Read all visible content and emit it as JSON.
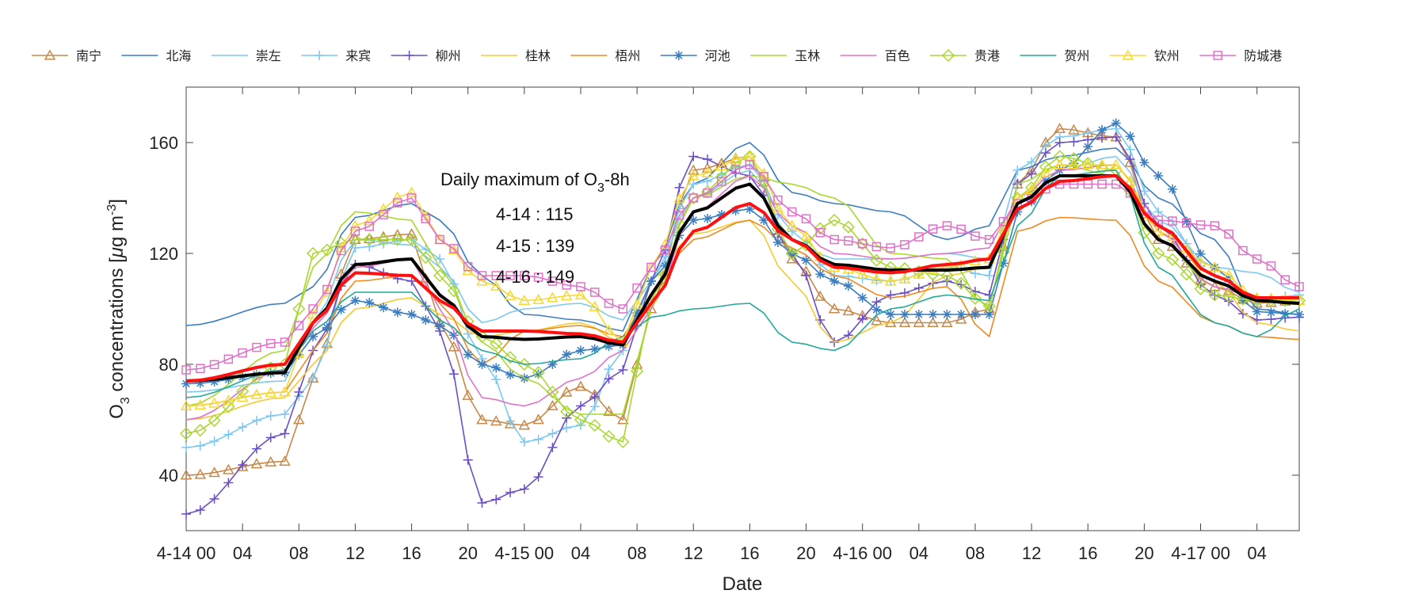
{
  "chart_data": {
    "type": "line",
    "title": "",
    "xlabel": "Date",
    "ylabel": {
      "pre": "O",
      "sub": "3",
      "mid": " concentrations [",
      "mu": "μ",
      "unit": "g m",
      "sup": "-3",
      "post": "]"
    },
    "ylim": [
      20,
      180
    ],
    "xlim": [
      0,
      79
    ],
    "yticks": [
      40,
      80,
      120,
      160
    ],
    "xticks": [
      {
        "x": 0,
        "label": "4-14 00"
      },
      {
        "x": 4,
        "label": "04"
      },
      {
        "x": 8,
        "label": "08"
      },
      {
        "x": 12,
        "label": "12"
      },
      {
        "x": 16,
        "label": "16"
      },
      {
        "x": 20,
        "label": "20"
      },
      {
        "x": 24,
        "label": "4-15 00"
      },
      {
        "x": 28,
        "label": "04"
      },
      {
        "x": 32,
        "label": "08"
      },
      {
        "x": 36,
        "label": "12"
      },
      {
        "x": 40,
        "label": "16"
      },
      {
        "x": 44,
        "label": "20"
      },
      {
        "x": 48,
        "label": "4-16 00"
      },
      {
        "x": 52,
        "label": "04"
      },
      {
        "x": 56,
        "label": "08"
      },
      {
        "x": 60,
        "label": "12"
      },
      {
        "x": 64,
        "label": "16"
      },
      {
        "x": 68,
        "label": "20"
      },
      {
        "x": 72,
        "label": "4-17 00"
      },
      {
        "x": 76,
        "label": "04"
      }
    ],
    "annotation": {
      "title_pre": "Daily maximum of O",
      "title_sub": "3",
      "title_post": "-8h",
      "lines": [
        "4-14 : 115",
        "4-15 : 139",
        "4-16 : 149"
      ]
    },
    "anchor_hours": [
      0,
      7,
      9,
      12,
      16,
      18,
      21,
      24,
      28,
      31,
      33,
      36,
      40,
      43,
      46,
      50,
      54,
      57,
      59,
      62,
      66,
      69,
      73,
      76,
      79
    ],
    "series": [
      {
        "name": "南宁",
        "color": "#c8884a",
        "marker": "triangle",
        "values": [
          40,
          45,
          75,
          125,
          127,
          95,
          60,
          58,
          72,
          60,
          100,
          150,
          155,
          118,
          100,
          95,
          95,
          100,
          145,
          165,
          162,
          125,
          108,
          102,
          103
        ]
      },
      {
        "name": "北海",
        "color": "#3a7dc0",
        "marker": "none",
        "values": [
          94,
          102,
          108,
          133,
          138,
          132,
          112,
          98,
          96,
          92,
          115,
          145,
          160,
          142,
          138,
          135,
          125,
          130,
          150,
          155,
          158,
          140,
          125,
          100,
          98
        ]
      },
      {
        "name": "崇左",
        "color": "#7cc8f0",
        "marker": "none",
        "values": [
          70,
          74,
          95,
          125,
          123,
          115,
          95,
          100,
          102,
          96,
          110,
          140,
          150,
          125,
          118,
          118,
          120,
          118,
          140,
          150,
          155,
          132,
          115,
          113,
          106
        ]
      },
      {
        "name": "来宾",
        "color": "#7cc8f0",
        "marker": "plus",
        "values": [
          50,
          62,
          75,
          122,
          125,
          118,
          82,
          52,
          58,
          85,
          110,
          145,
          152,
          128,
          112,
          110,
          115,
          112,
          150,
          162,
          165,
          135,
          112,
          103,
          105
        ]
      },
      {
        "name": "柳州",
        "color": "#6a4fc8",
        "marker": "plus",
        "values": [
          26,
          55,
          85,
          116,
          110,
          92,
          30,
          35,
          65,
          78,
          110,
          155,
          148,
          120,
          88,
          105,
          110,
          105,
          145,
          160,
          162,
          130,
          105,
          96,
          97
        ]
      },
      {
        "name": "桂林",
        "color": "#f8c830",
        "marker": "none",
        "values": [
          60,
          68,
          80,
          100,
          104,
          98,
          90,
          92,
          95,
          88,
          110,
          127,
          132,
          110,
          88,
          95,
          112,
          115,
          140,
          150,
          152,
          130,
          110,
          95,
          92
        ]
      },
      {
        "name": "梧州",
        "color": "#f08820",
        "marker": "none",
        "values": [
          65,
          70,
          85,
          110,
          112,
          102,
          80,
          92,
          94,
          90,
          105,
          125,
          132,
          122,
          112,
          104,
          108,
          90,
          128,
          133,
          132,
          110,
          95,
          90,
          89
        ]
      },
      {
        "name": "河池",
        "color": "#3a7dc0",
        "marker": "star",
        "values": [
          73,
          77,
          90,
          103,
          98,
          94,
          80,
          75,
          85,
          87,
          110,
          132,
          136,
          120,
          110,
          98,
          98,
          98,
          135,
          150,
          167,
          148,
          115,
          99,
          98
        ]
      },
      {
        "name": "玉林",
        "color": "#a8d830",
        "marker": "none",
        "values": [
          65,
          85,
          115,
          135,
          132,
          115,
          88,
          75,
          62,
          62,
          100,
          140,
          148,
          145,
          140,
          120,
          118,
          100,
          145,
          152,
          148,
          125,
          108,
          104,
          102
        ]
      },
      {
        "name": "百色",
        "color": "#e070c8",
        "marker": "none",
        "values": [
          60,
          78,
          93,
          115,
          118,
          100,
          68,
          65,
          75,
          85,
          100,
          135,
          148,
          130,
          120,
          118,
          120,
          122,
          140,
          150,
          152,
          128,
          108,
          104,
          104
        ]
      },
      {
        "name": "贵港",
        "color": "#a8d830",
        "marker": "diamond",
        "values": [
          55,
          80,
          120,
          125,
          125,
          112,
          90,
          80,
          60,
          52,
          103,
          140,
          155,
          120,
          132,
          115,
          112,
          101,
          140,
          155,
          150,
          120,
          105,
          103,
          103
        ]
      },
      {
        "name": "贺州",
        "color": "#20a898",
        "marker": "none",
        "values": [
          68,
          78,
          92,
          106,
          106,
          96,
          85,
          80,
          82,
          90,
          97,
          100,
          102,
          88,
          85,
          100,
          105,
          103,
          130,
          148,
          150,
          115,
          95,
          90,
          100
        ]
      },
      {
        "name": "钦州",
        "color": "#f8d830",
        "marker": "triangle",
        "values": [
          65,
          70,
          98,
          130,
          142,
          125,
          110,
          103,
          105,
          88,
          115,
          148,
          155,
          130,
          115,
          110,
          115,
          118,
          140,
          152,
          152,
          128,
          115,
          104,
          103
        ]
      },
      {
        "name": "防城港",
        "color": "#e070c8",
        "marker": "square",
        "values": [
          78,
          88,
          100,
          128,
          140,
          125,
          112,
          112,
          108,
          100,
          115,
          140,
          152,
          135,
          125,
          122,
          130,
          125,
          138,
          145,
          145,
          132,
          130,
          118,
          108
        ]
      },
      {
        "name": "",
        "color": "#000000",
        "marker": "none",
        "width": 4,
        "values": [
          74,
          77,
          95,
          116,
          118,
          105,
          90,
          89,
          90,
          87,
          105,
          135,
          145,
          125,
          116,
          114,
          114,
          115,
          138,
          148,
          148,
          125,
          110,
          103,
          102
        ]
      },
      {
        "name": "",
        "color": "#ff1010",
        "marker": "none",
        "width": 4,
        "values": [
          74,
          80,
          95,
          113,
          112,
          103,
          92,
          92,
          91,
          88,
          102,
          128,
          138,
          125,
          115,
          113,
          116,
          118,
          136,
          146,
          148,
          130,
          112,
          104,
          104
        ]
      }
    ]
  }
}
